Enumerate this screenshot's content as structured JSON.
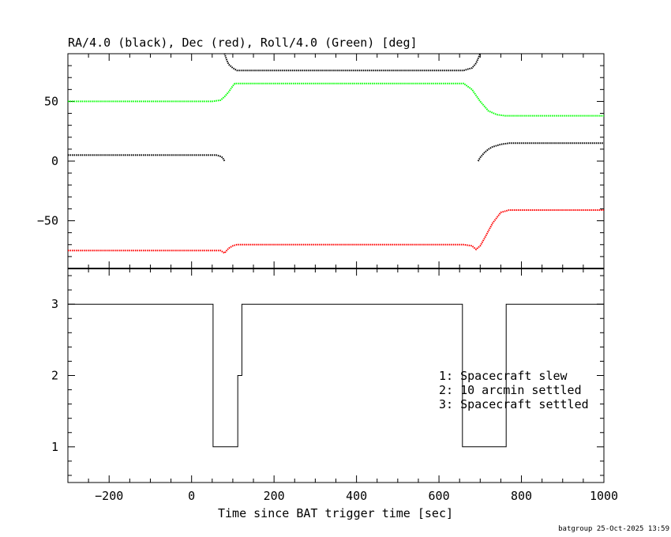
{
  "chart_data": [
    {
      "type": "line",
      "title": "RA/4.0 (black), Dec (red), Roll/4.0 (Green) [deg]",
      "xlim": [
        -300,
        1000
      ],
      "ylim": [
        -90,
        90
      ],
      "yticks": [
        "50",
        "0",
        "−50"
      ],
      "ytick_values": [
        50,
        0,
        -50
      ],
      "series": [
        {
          "color": "#000000",
          "style": "dotted",
          "x": [
            -300,
            60,
            70,
            75,
            80
          ],
          "y": [
            5,
            5,
            4,
            3,
            0
          ]
        },
        {
          "color": "#000000",
          "style": "dotted",
          "x": [
            75,
            80,
            85,
            90,
            100,
            110,
            660,
            670,
            680,
            690,
            695,
            700
          ],
          "y": [
            100,
            90,
            85,
            81,
            78,
            76,
            76,
            77,
            78,
            82,
            86,
            90
          ]
        },
        {
          "color": "#000000",
          "style": "dotted",
          "x": [
            695,
            700,
            710,
            720,
            730,
            740,
            750,
            770,
            1000
          ],
          "y": [
            0,
            3,
            7,
            10,
            12,
            13,
            14,
            15,
            15
          ]
        },
        {
          "color": "#00ff00",
          "style": "dotted",
          "x": [
            -300,
            50,
            70,
            80,
            90,
            100,
            105,
            110,
            660,
            680,
            700,
            720,
            740,
            760,
            770,
            1000
          ],
          "y": [
            50,
            50,
            51,
            54,
            58,
            63,
            65,
            65,
            65,
            60,
            50,
            42,
            39,
            38,
            38,
            38
          ]
        },
        {
          "color": "#ff0000",
          "style": "dotted",
          "x": [
            -300,
            60,
            70,
            80,
            90,
            100,
            110,
            660,
            680,
            690,
            700,
            710,
            730,
            750,
            770,
            1000
          ],
          "y": [
            -75,
            -75,
            -75,
            -77,
            -73,
            -71,
            -70,
            -70,
            -71,
            -74,
            -71,
            -65,
            -52,
            -43,
            -41,
            -41
          ]
        }
      ]
    },
    {
      "type": "line",
      "xlabel": "Time since BAT trigger time [sec]",
      "xlim": [
        -300,
        1000
      ],
      "ylim": [
        0.5,
        3.5
      ],
      "xticks": [
        "−200",
        "0",
        "200",
        "400",
        "600",
        "800",
        "1000"
      ],
      "xtick_values": [
        -200,
        0,
        200,
        400,
        600,
        800,
        1000
      ],
      "yticks": [
        "3",
        "2",
        "1"
      ],
      "ytick_values": [
        3,
        2,
        1
      ],
      "series": [
        {
          "color": "#000000",
          "style": "step",
          "x": [
            -300,
            52,
            52,
            112,
            112,
            122,
            122,
            657,
            657,
            763,
            763,
            1000
          ],
          "y": [
            3,
            3,
            1,
            1,
            2,
            2,
            3,
            3,
            1,
            1,
            3,
            3
          ]
        }
      ],
      "legend": [
        "1: Spacecraft slew",
        "2: 10 arcmin settled",
        "3: Spacecraft settled"
      ]
    }
  ],
  "footer": "batgroup 25-Oct-2025 13:59"
}
